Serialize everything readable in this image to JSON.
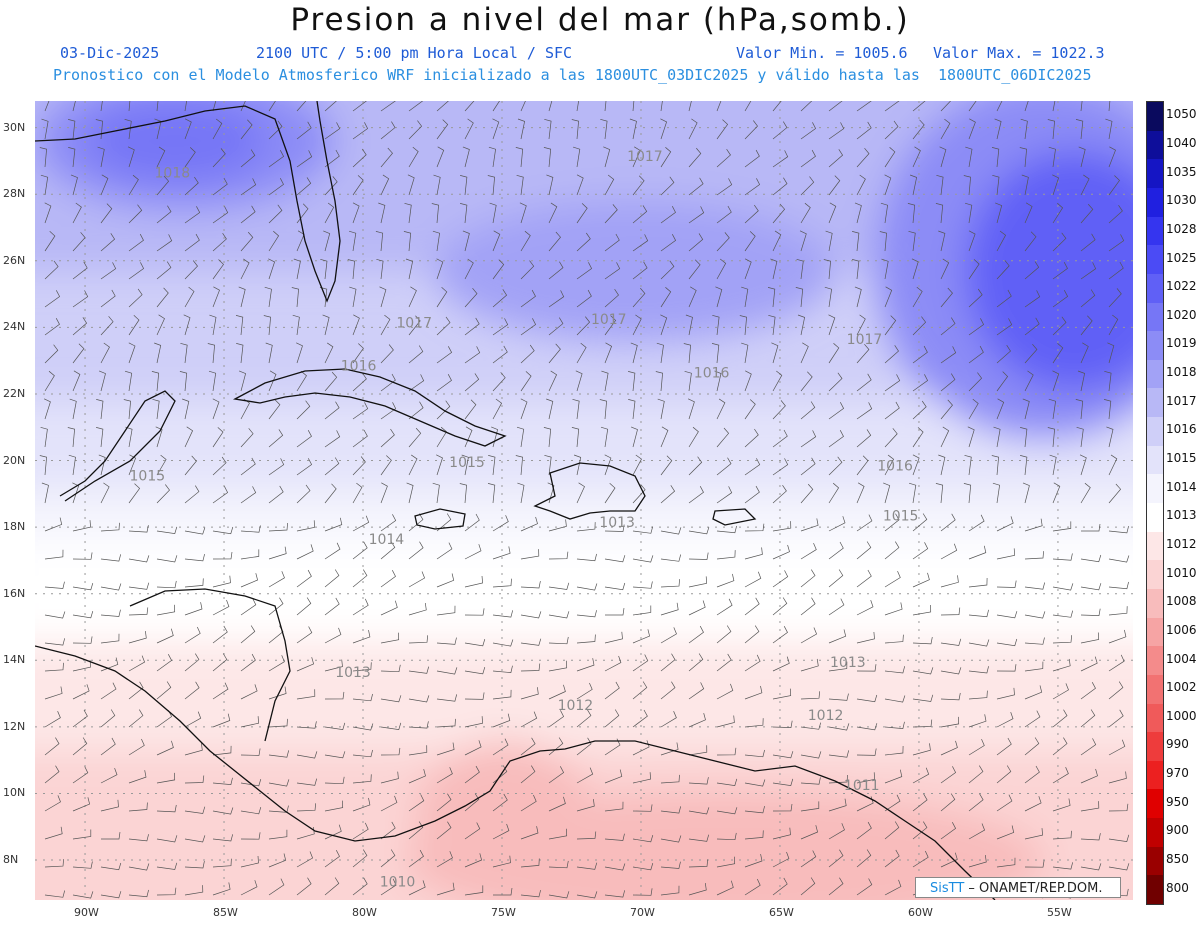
{
  "header": {
    "title": "Presion a nivel del mar (hPa,somb.)",
    "date": "03-Dic-2025",
    "time": "2100 UTC / 5:00 pm Hora Local / SFC",
    "min": "Valor Min. = 1005.6",
    "max": "Valor Max. = 1022.3",
    "description": "Pronostico con el Modelo Atmosferico WRF inicializado a las 1800UTC_03DIC2025 y válido hasta las  1800UTC_06DIC2025"
  },
  "map": {
    "lat_labels": [
      "30N",
      "28N",
      "26N",
      "24N",
      "22N",
      "20N",
      "18N",
      "16N",
      "14N",
      "12N",
      "10N",
      "8N"
    ],
    "lon_labels": [
      "90W",
      "85W",
      "80W",
      "75W",
      "70W",
      "65W",
      "60W",
      "55W"
    ],
    "lon_range": [
      -91.8,
      -52.3
    ],
    "lat_range": [
      6.8,
      30.8
    ],
    "contour_labels": [
      {
        "text": "1018",
        "lon": -87.5,
        "lat": 28.5
      },
      {
        "text": "1017",
        "lon": -70.5,
        "lat": 29.0
      },
      {
        "text": "1017",
        "lon": -78.8,
        "lat": 24.0
      },
      {
        "text": "1017",
        "lon": -71.8,
        "lat": 24.1
      },
      {
        "text": "1017",
        "lon": -62.6,
        "lat": 23.5
      },
      {
        "text": "1016",
        "lon": -80.8,
        "lat": 22.7
      },
      {
        "text": "1016",
        "lon": -68.1,
        "lat": 22.5
      },
      {
        "text": "1016",
        "lon": -61.5,
        "lat": 19.7
      },
      {
        "text": "1015",
        "lon": -76.9,
        "lat": 19.8
      },
      {
        "text": "1015",
        "lon": -88.4,
        "lat": 19.4
      },
      {
        "text": "1015",
        "lon": -61.3,
        "lat": 18.2
      },
      {
        "text": "1014",
        "lon": -79.8,
        "lat": 17.5
      },
      {
        "text": "1013",
        "lon": -71.5,
        "lat": 18.0
      },
      {
        "text": "1013",
        "lon": -81.0,
        "lat": 13.5
      },
      {
        "text": "1013",
        "lon": -63.2,
        "lat": 13.8
      },
      {
        "text": "1012",
        "lon": -73.0,
        "lat": 12.5
      },
      {
        "text": "1012",
        "lon": -64.0,
        "lat": 12.2
      },
      {
        "text": "1011",
        "lon": -62.7,
        "lat": 10.1
      },
      {
        "text": "1010",
        "lon": -79.4,
        "lat": 7.2
      }
    ]
  },
  "colorbar": {
    "levels": [
      "1050",
      "1040",
      "1035",
      "1030",
      "1028",
      "1025",
      "1022",
      "1020",
      "1019",
      "1018",
      "1017",
      "1016",
      "1015",
      "1014",
      "1013",
      "1012",
      "1010",
      "1008",
      "1006",
      "1004",
      "1002",
      "1000",
      "990",
      "970",
      "950",
      "900",
      "850",
      "800"
    ],
    "colors": [
      "#0a0a5e",
      "#0e0e9a",
      "#1515c4",
      "#2020e0",
      "#3535ef",
      "#4b4bf5",
      "#6060f6",
      "#7676f6",
      "#8c8cf6",
      "#a2a2f6",
      "#b8b8f6",
      "#cfcff8",
      "#e3e3fa",
      "#f4f4fd",
      "#ffffff",
      "#fde7e7",
      "#fbd4d4",
      "#f8bcbc",
      "#f6a4a4",
      "#f48b8b",
      "#f27272",
      "#f05a5a",
      "#ee3c3c",
      "#ec2020",
      "#e00000",
      "#c00000",
      "#9a0000",
      "#700000"
    ]
  },
  "credit": {
    "brand": "SisTT",
    "text": " – ONAMET/REP.DOM."
  }
}
